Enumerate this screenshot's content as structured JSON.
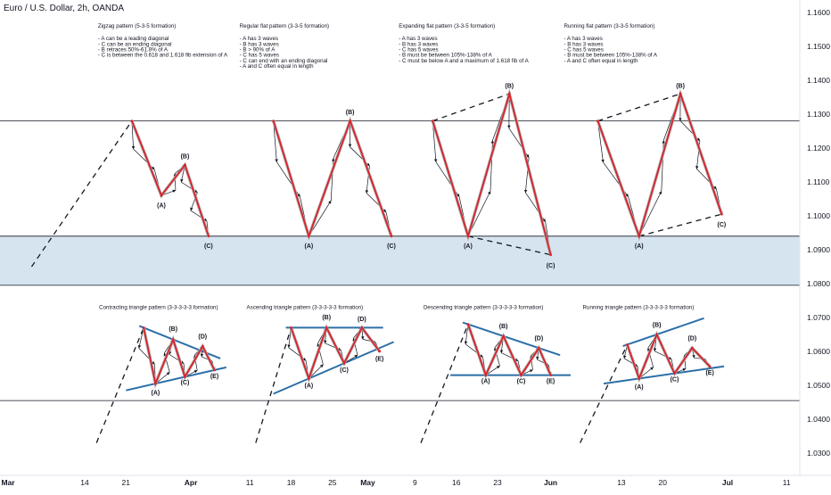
{
  "chart_data": {
    "type": "line",
    "title": "Euro / U.S. Dollar, 2h, OANDA",
    "y_axis": {
      "position": "right",
      "range": [
        1.0255,
        1.1635
      ],
      "ticks": [
        "1.1600",
        "1.1500",
        "1.1400",
        "1.1300",
        "1.1200",
        "1.1100",
        "1.1000",
        "1.0900",
        "1.0800",
        "1.0700",
        "1.0600",
        "1.0500",
        "1.0400",
        "1.0300"
      ]
    },
    "x_axis": {
      "ticks": [
        "Mar",
        "14",
        "21",
        "Apr",
        "11",
        "18",
        "25",
        "May",
        "9",
        "16",
        "23",
        "Jun",
        "13",
        "20",
        "Jul",
        "11"
      ],
      "bold_ticks": [
        "Mar",
        "Apr",
        "May",
        "Jun",
        "Jul"
      ]
    },
    "colors": {
      "wave": "#d9232a",
      "wave_halo": "#b0b0b0",
      "arrow": "#131722",
      "trendline": "#2b6fa8",
      "horizontal_line": "#131722",
      "zone_fill": "#d6e4ef",
      "axis_text": "#131722"
    },
    "horizontal_levels": [
      1.128,
      1.094,
      1.0795,
      1.0455
    ],
    "shaded_zone": [
      1.0795,
      1.094
    ],
    "patterns": [
      {
        "name": "Zigzag pattern (5-3-5 formation)",
        "notes": [
          "- A can be a leading diagonal",
          "- C can be an ending diagonal",
          "- B retraces 50%-61.8% of A",
          "- C is between the 0.618 and 1.618 fib extension of A"
        ],
        "lead_in": [
          {
            "x": "Mar 5",
            "y": 1.085
          },
          {
            "x": "Mar 22",
            "y": 1.128
          }
        ],
        "waves": [
          {
            "x": "Mar 22",
            "y": 1.128
          },
          {
            "x": "Mar 27",
            "y": 1.106
          },
          {
            "x": "Mar 31",
            "y": 1.115
          },
          {
            "x": "Apr 4",
            "y": 1.094
          }
        ],
        "labels": [
          {
            "text": "(A)",
            "x": "Mar 27",
            "y": 1.1025
          },
          {
            "text": "(B)",
            "x": "Mar 31",
            "y": 1.117
          },
          {
            "text": "(C)",
            "x": "Apr 4",
            "y": 1.0905
          }
        ]
      },
      {
        "name": "Regular flat pattern (3-3-5 formation)",
        "notes": [
          "- A has 3 waves",
          "- B has 3 waves",
          "- B > 90% of A",
          "- C has 5 waves",
          "- C can end with an ending diagonal",
          "- A and C often equal in length"
        ],
        "waves": [
          {
            "x": "Apr 15",
            "y": 1.128
          },
          {
            "x": "Apr 21",
            "y": 1.094
          },
          {
            "x": "Apr 28",
            "y": 1.128
          },
          {
            "x": "May 5",
            "y": 1.094
          }
        ],
        "labels": [
          {
            "text": "(B)",
            "x": "Apr 28",
            "y": 1.13
          },
          {
            "text": "(A)",
            "x": "Apr 21",
            "y": 1.0905
          },
          {
            "text": "(C)",
            "x": "May 5",
            "y": 1.0905
          }
        ]
      },
      {
        "name": "Expanding flat pattern (3-3-5 formation)",
        "notes": [
          "- A has 3 waves",
          "- B has 3 waves",
          "- C has 5 waves",
          "- B must be between 105%-138% of A",
          "- C must be below A and a maximum of 1.618 fib of A"
        ],
        "waves": [
          {
            "x": "May 12",
            "y": 1.128
          },
          {
            "x": "May 18",
            "y": 1.094
          },
          {
            "x": "May 25",
            "y": 1.136
          },
          {
            "x": "Jun 1",
            "y": 1.0885
          }
        ],
        "labels": [
          {
            "text": "(B)",
            "x": "May 25",
            "y": 1.1378
          },
          {
            "text": "(A)",
            "x": "May 18",
            "y": 1.0905
          },
          {
            "text": "(C)",
            "x": "Jun 1",
            "y": 1.0848
          }
        ]
      },
      {
        "name": "Running flat pattern (3-3-5 formation)",
        "notes": [
          "- A has 3 waves",
          "- B has 3 waves",
          "- C has 5 waves",
          "- B must be between 105%-138% of A",
          "- A and C often equal in length"
        ],
        "waves": [
          {
            "x": "Jun 9",
            "y": 1.128
          },
          {
            "x": "Jun 16",
            "y": 1.094
          },
          {
            "x": "Jun 23",
            "y": 1.136
          },
          {
            "x": "Jun 30",
            "y": 1.1005
          }
        ],
        "labels": [
          {
            "text": "(B)",
            "x": "Jun 23",
            "y": 1.1378
          },
          {
            "text": "(A)",
            "x": "Jun 16",
            "y": 1.0905
          },
          {
            "text": "(C)",
            "x": "Jun 30",
            "y": 1.0968
          }
        ]
      },
      {
        "name": "Contracting triangle pattern (3-3-3-3-3 formation)",
        "lead_in": [
          {
            "x": "Mar 16",
            "y": 1.033
          },
          {
            "x": "Mar 24",
            "y": 1.067
          }
        ],
        "waves": [
          {
            "x": "Mar 24",
            "y": 1.067
          },
          {
            "x": "Mar 26",
            "y": 1.0505
          },
          {
            "x": "Mar 29",
            "y": 1.0635
          },
          {
            "x": "Mar 31",
            "y": 1.0525
          },
          {
            "x": "Apr 3",
            "y": 1.0615
          },
          {
            "x": "Apr 5",
            "y": 1.0545
          }
        ],
        "labels": [
          {
            "text": "(B)",
            "x": "Mar 29",
            "y": 1.066
          },
          {
            "text": "(D)",
            "x": "Apr 3",
            "y": 1.0638
          },
          {
            "text": "(C)",
            "x": "Mar 31",
            "y": 1.0503
          },
          {
            "text": "(E)",
            "x": "Apr 5",
            "y": 1.0521
          },
          {
            "text": "(A)",
            "x": "Mar 26",
            "y": 1.0473
          }
        ]
      },
      {
        "name": "Ascending triangle pattern (3-3-3-3-3 formation)",
        "lead_in": [
          {
            "x": "Apr 12",
            "y": 1.033
          },
          {
            "x": "Apr 18",
            "y": 1.067
          }
        ],
        "waves": [
          {
            "x": "Apr 18",
            "y": 1.067
          },
          {
            "x": "Apr 21",
            "y": 1.052
          },
          {
            "x": "Apr 24",
            "y": 1.067
          },
          {
            "x": "Apr 27",
            "y": 1.0565
          },
          {
            "x": "Apr 30",
            "y": 1.067
          },
          {
            "x": "May 3",
            "y": 1.06
          }
        ],
        "labels": [
          {
            "text": "(B)",
            "x": "Apr 24",
            "y": 1.0695
          },
          {
            "text": "(D)",
            "x": "Apr 30",
            "y": 1.069
          },
          {
            "text": "(C)",
            "x": "Apr 27",
            "y": 1.054
          },
          {
            "text": "(E)",
            "x": "May 3",
            "y": 1.0572
          },
          {
            "text": "(A)",
            "x": "Apr 21",
            "y": 1.0493
          }
        ]
      },
      {
        "name": "Descending triangle pattern (3-3-3-3-3 formation)",
        "lead_in": [
          {
            "x": "May 10",
            "y": 1.033
          },
          {
            "x": "May 18",
            "y": 1.068
          }
        ],
        "waves": [
          {
            "x": "May 18",
            "y": 1.068
          },
          {
            "x": "May 21",
            "y": 1.053
          },
          {
            "x": "May 24",
            "y": 1.0645
          },
          {
            "x": "May 27",
            "y": 1.053
          },
          {
            "x": "May 30",
            "y": 1.061
          },
          {
            "x": "Jun 1",
            "y": 1.053
          }
        ],
        "labels": [
          {
            "text": "(B)",
            "x": "May 24",
            "y": 1.0668
          },
          {
            "text": "(D)",
            "x": "May 30",
            "y": 1.0633
          },
          {
            "text": "(C)",
            "x": "May 27",
            "y": 1.0507
          },
          {
            "text": "(E)",
            "x": "Jun 1",
            "y": 1.0507
          },
          {
            "text": "(A)",
            "x": "May 21",
            "y": 1.0507
          }
        ]
      },
      {
        "name": "Running triangle pattern (3-3-3-3-3 formation)",
        "lead_in": [
          {
            "x": "Jun 6",
            "y": 1.033
          },
          {
            "x": "Jun 14",
            "y": 1.062
          }
        ],
        "waves": [
          {
            "x": "Jun 14",
            "y": 1.062
          },
          {
            "x": "Jun 16",
            "y": 1.052
          },
          {
            "x": "Jun 19",
            "y": 1.065
          },
          {
            "x": "Jun 22",
            "y": 1.0535
          },
          {
            "x": "Jun 25",
            "y": 1.061
          },
          {
            "x": "Jun 28",
            "y": 1.0555
          }
        ],
        "labels": [
          {
            "text": "(B)",
            "x": "Jun 19",
            "y": 1.0673
          },
          {
            "text": "(D)",
            "x": "Jun 25",
            "y": 1.0633
          },
          {
            "text": "(C)",
            "x": "Jun 22",
            "y": 1.0512
          },
          {
            "text": "(E)",
            "x": "Jun 28",
            "y": 1.0532
          },
          {
            "text": "(A)",
            "x": "Jun 16",
            "y": 1.049
          }
        ]
      }
    ]
  }
}
